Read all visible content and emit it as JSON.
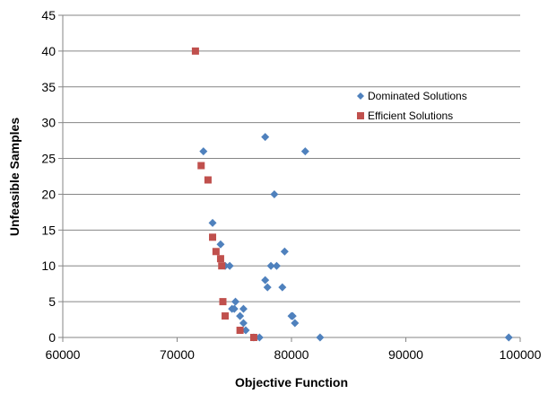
{
  "chart_data": {
    "type": "scatter",
    "title": "",
    "xlabel": "Objective Function",
    "ylabel": "Unfeasible Samples",
    "xlim": [
      60000,
      100000
    ],
    "ylim": [
      0,
      45
    ],
    "x_ticks": [
      60000,
      70000,
      80000,
      90000,
      100000
    ],
    "y_ticks": [
      0,
      5,
      10,
      15,
      20,
      25,
      30,
      35,
      40,
      45
    ],
    "grid": "horizontal",
    "legend_position": "right",
    "series": [
      {
        "name": "Dominated Solutions",
        "marker": "diamond",
        "color": "#4F81BD",
        "points": [
          [
            72300,
            26
          ],
          [
            73100,
            16
          ],
          [
            73800,
            13
          ],
          [
            74200,
            10
          ],
          [
            74600,
            10
          ],
          [
            74800,
            4
          ],
          [
            75000,
            4
          ],
          [
            75100,
            5
          ],
          [
            75500,
            3
          ],
          [
            75800,
            4
          ],
          [
            75800,
            2
          ],
          [
            76000,
            1
          ],
          [
            76700,
            0
          ],
          [
            77200,
            0
          ],
          [
            77700,
            28
          ],
          [
            77700,
            8
          ],
          [
            77900,
            7
          ],
          [
            78200,
            10
          ],
          [
            78500,
            20
          ],
          [
            78700,
            10
          ],
          [
            79200,
            7
          ],
          [
            79400,
            12
          ],
          [
            80000,
            3
          ],
          [
            80100,
            3
          ],
          [
            80300,
            2
          ],
          [
            81200,
            26
          ],
          [
            82500,
            0
          ],
          [
            99000,
            0
          ]
        ]
      },
      {
        "name": "Efficient Solutions",
        "marker": "square",
        "color": "#C0504D",
        "points": [
          [
            71600,
            40
          ],
          [
            72100,
            24
          ],
          [
            72700,
            22
          ],
          [
            73100,
            14
          ],
          [
            73400,
            12
          ],
          [
            73800,
            11
          ],
          [
            73900,
            10
          ],
          [
            74000,
            5
          ],
          [
            74200,
            3
          ],
          [
            75500,
            1
          ],
          [
            76700,
            0
          ]
        ]
      }
    ]
  }
}
